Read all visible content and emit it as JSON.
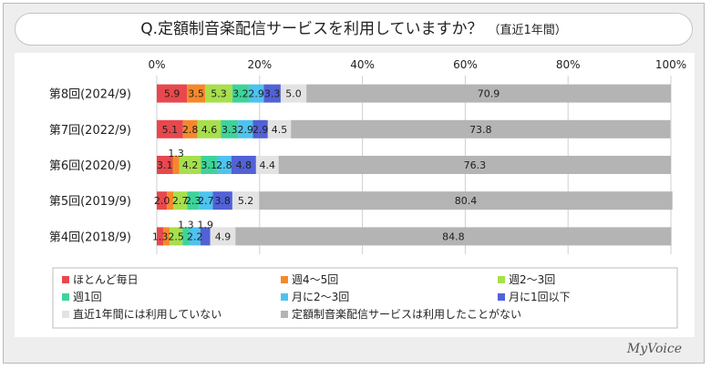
{
  "title": "Q.定額制音楽配信サービスを利用していますか？",
  "subtitle": "（直近1年間）",
  "logo": "MyVoice",
  "chart_data": {
    "type": "bar",
    "orientation": "horizontal",
    "stacked": true,
    "percent": true,
    "xlim": [
      0,
      100
    ],
    "x_ticks": [
      "0%",
      "20%",
      "40%",
      "60%",
      "80%",
      "100%"
    ],
    "grid": true,
    "legend_position": "bottom",
    "categories": [
      "第8回(2024/9)",
      "第7回(2022/9)",
      "第6回(2020/9)",
      "第5回(2019/9)",
      "第4回(2018/9)"
    ],
    "series": [
      {
        "name": "ほとんど毎日",
        "color": "#e8484d",
        "values": [
          5.9,
          5.1,
          3.1,
          2.0,
          1.3
        ],
        "labels": [
          "5.9",
          "5.1",
          "3.1",
          "2.0",
          "1.3"
        ]
      },
      {
        "name": "週4～5回",
        "color": "#f5892a",
        "values": [
          3.5,
          2.8,
          1.3,
          1.2,
          1.2
        ],
        "labels": [
          "3.5",
          "2.8",
          "1.3",
          "",
          ""
        ]
      },
      {
        "name": "週2～3回",
        "color": "#a8df4c",
        "values": [
          5.3,
          4.6,
          4.2,
          2.7,
          2.5
        ],
        "labels": [
          "5.3",
          "4.6",
          "4.2",
          "2.7",
          "2.5"
        ]
      },
      {
        "name": "週1回",
        "color": "#3ed39a",
        "values": [
          3.2,
          3.3,
          3.1,
          2.3,
          1.3
        ],
        "labels": [
          "3.2",
          "3.3",
          "3.1",
          "2.3",
          "1.3"
        ]
      },
      {
        "name": "月に2～3回",
        "color": "#4ec3ee",
        "values": [
          2.9,
          2.9,
          2.8,
          2.7,
          2.2
        ],
        "labels": [
          "2.9",
          "2.9",
          "2.8",
          "2.7",
          "2.2"
        ]
      },
      {
        "name": "月に1回以下",
        "color": "#5261d6",
        "values": [
          3.3,
          2.9,
          4.8,
          3.8,
          1.9
        ],
        "labels": [
          "3.3",
          "2.9",
          "4.8",
          "3.8",
          "1.9"
        ]
      },
      {
        "name": "直近1年間には利用していない",
        "color": "#e3e3e3",
        "values": [
          5.0,
          4.5,
          4.4,
          5.2,
          4.9
        ],
        "labels": [
          "5.0",
          "4.5",
          "4.4",
          "5.2",
          "4.9"
        ]
      },
      {
        "name": "定額制音楽配信サービスは利用したことがない",
        "color": "#b4b4b4",
        "values": [
          70.9,
          73.8,
          76.3,
          80.4,
          84.8
        ],
        "labels": [
          "70.9",
          "73.8",
          "76.3",
          "80.4",
          "84.8"
        ]
      }
    ]
  }
}
